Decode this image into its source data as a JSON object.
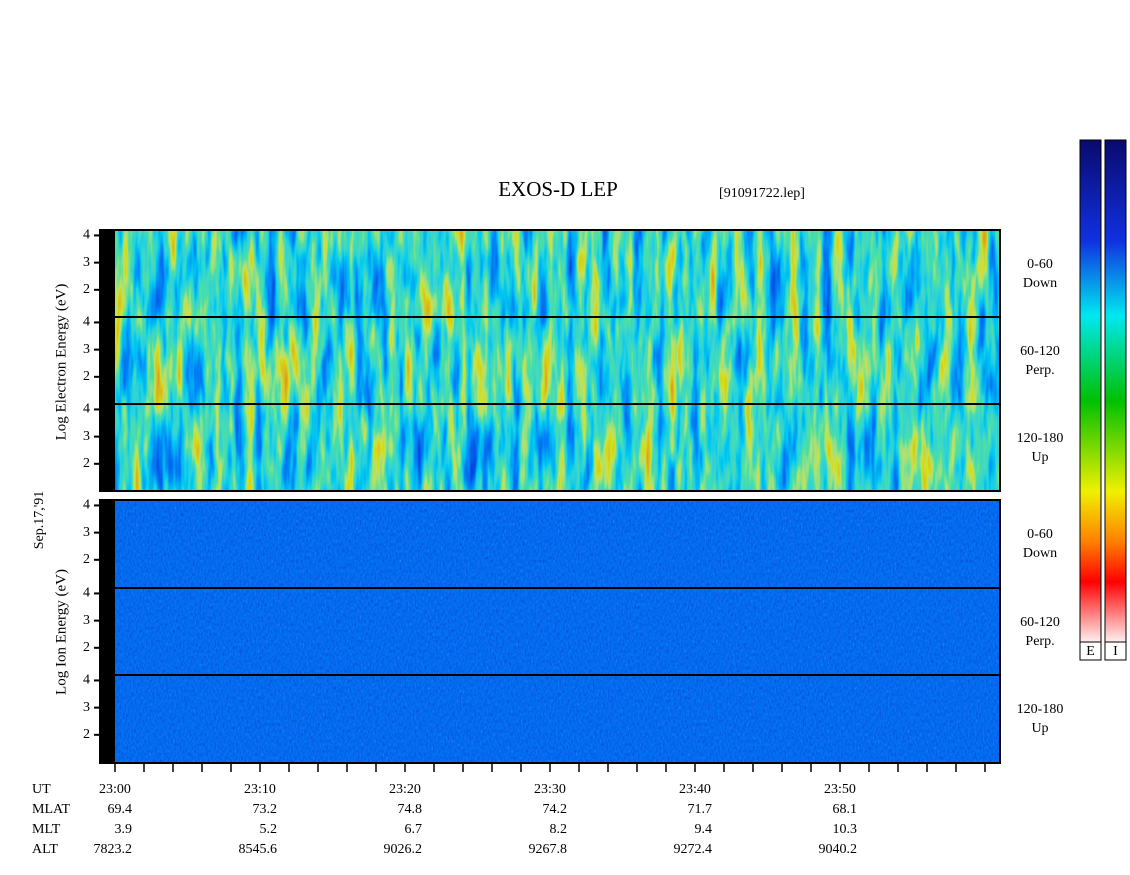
{
  "title": "EXOS-D LEP",
  "file": "[91091722.lep]",
  "date": "Sep.17,'91",
  "electron_label": "Log  Electron  Energy (eV)",
  "ion_label": "Log  Ion  Energy (eV)",
  "ylim": [
    1,
    4.2
  ],
  "yticks": [
    2,
    3,
    4
  ],
  "panels": [
    {
      "angle": "0-60",
      "direction": "Down"
    },
    {
      "angle": "60-120",
      "direction": "Perp."
    },
    {
      "angle": "120-180",
      "direction": "Up"
    },
    {
      "angle": "0-60",
      "direction": "Down"
    },
    {
      "angle": "60-120",
      "direction": "Perp."
    },
    {
      "angle": "120-180",
      "direction": "Up"
    }
  ],
  "time_rows": [
    {
      "label": "UT",
      "values": [
        "23:00",
        "23:10",
        "23:20",
        "23:30",
        "23:40",
        "23:50"
      ]
    },
    {
      "label": "MLAT",
      "values": [
        69.4,
        73.2,
        74.8,
        74.2,
        71.7,
        68.1
      ]
    },
    {
      "label": "MLT",
      "values": [
        3.9,
        5.2,
        6.7,
        8.2,
        9.4,
        10.3
      ]
    },
    {
      "label": "ALT",
      "values": [
        7823.2,
        8545.6,
        9026.2,
        9267.8,
        9272.4,
        9040.2
      ]
    }
  ],
  "colorbars": [
    "E",
    "I"
  ]
}
